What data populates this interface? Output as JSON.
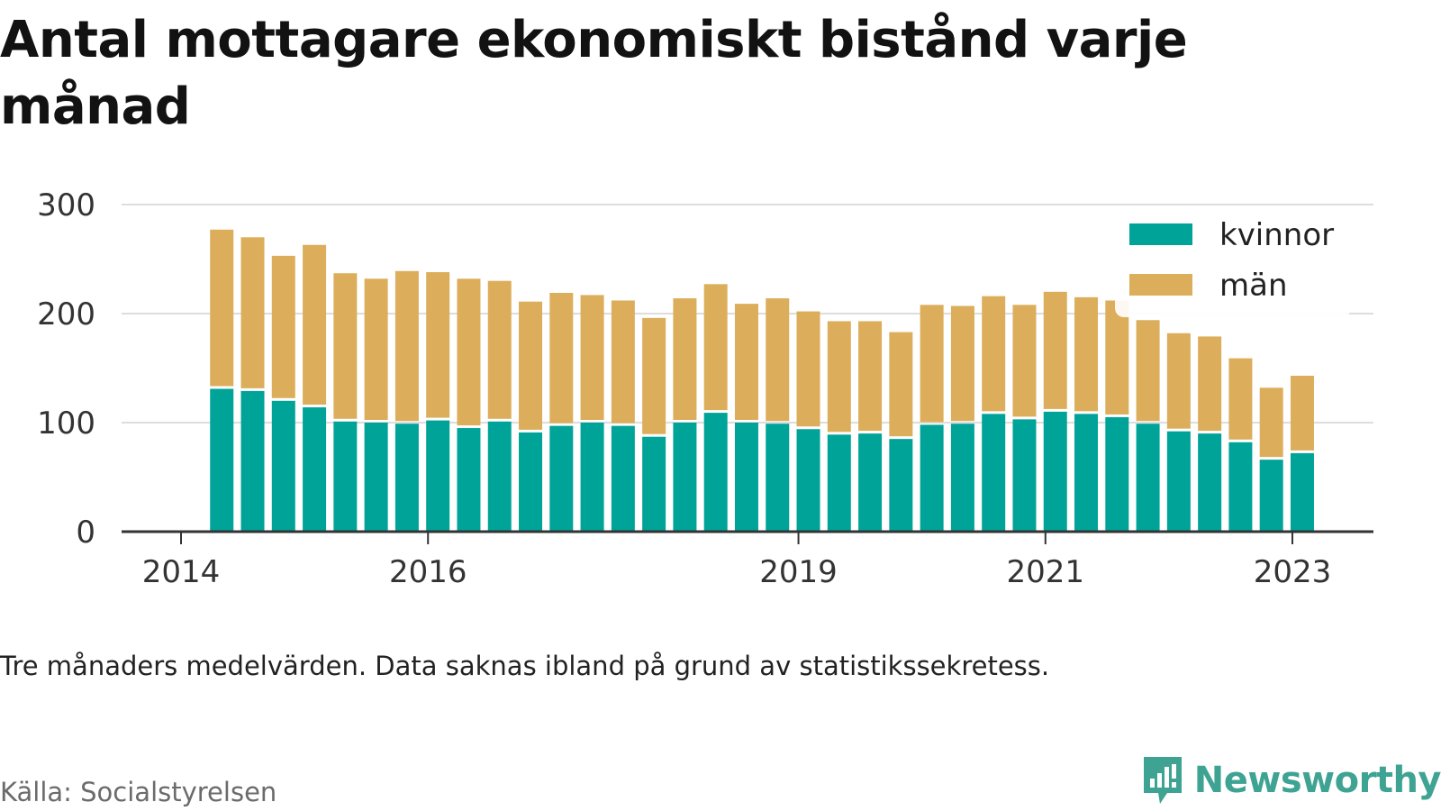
{
  "title": "Antal mottagare ekonomiskt bistånd varje månad",
  "note": "Tre månaders medelvärden. Data saknas ibland på grund av statistikssekretess.",
  "source": "Källa: Socialstyrelsen",
  "brand": {
    "name": "Newsworthy",
    "icon": "newsworthy-logo-icon",
    "color": "#3fa393"
  },
  "colors": {
    "kvinnor": "#00a398",
    "man": "#dcae5b",
    "grid": "#dddddd",
    "axis": "#333333"
  },
  "chart_data": {
    "type": "bar",
    "stacked": true,
    "title": "Antal mottagare ekonomiskt bistånd varje månad",
    "xlabel": "",
    "ylabel": "",
    "ylim": [
      0,
      300
    ],
    "yticks": [
      0,
      100,
      200,
      300
    ],
    "xlim": [
      2014,
      2023.3
    ],
    "xticks": [
      2014,
      2016,
      2019,
      2021,
      2023
    ],
    "legend_position": "top-right",
    "x": [
      2014.33,
      2014.58,
      2014.83,
      2015.08,
      2015.33,
      2015.58,
      2015.83,
      2016.08,
      2016.33,
      2016.58,
      2016.83,
      2017.08,
      2017.33,
      2017.58,
      2017.83,
      2018.08,
      2018.33,
      2018.58,
      2018.83,
      2019.08,
      2019.33,
      2019.58,
      2019.83,
      2020.08,
      2020.33,
      2020.58,
      2020.83,
      2021.08,
      2021.33,
      2021.58,
      2021.83,
      2022.08,
      2022.33,
      2022.58,
      2022.83,
      2023.08
    ],
    "series": [
      {
        "name": "kvinnor",
        "values": [
          131,
          129,
          120,
          114,
          101,
          100,
          99,
          102,
          95,
          101,
          91,
          97,
          100,
          97,
          87,
          100,
          109,
          100,
          99,
          94,
          89,
          90,
          85,
          98,
          99,
          108,
          103,
          110,
          108,
          105,
          99,
          92,
          90,
          82,
          66,
          72
        ]
      },
      {
        "name": "män",
        "values": [
          146,
          141,
          133,
          149,
          136,
          132,
          140,
          136,
          137,
          129,
          120,
          122,
          117,
          115,
          109,
          114,
          118,
          109,
          115,
          108,
          104,
          103,
          98,
          110,
          108,
          108,
          105,
          110,
          107,
          107,
          95,
          90,
          89,
          77,
          66,
          71
        ]
      }
    ]
  }
}
